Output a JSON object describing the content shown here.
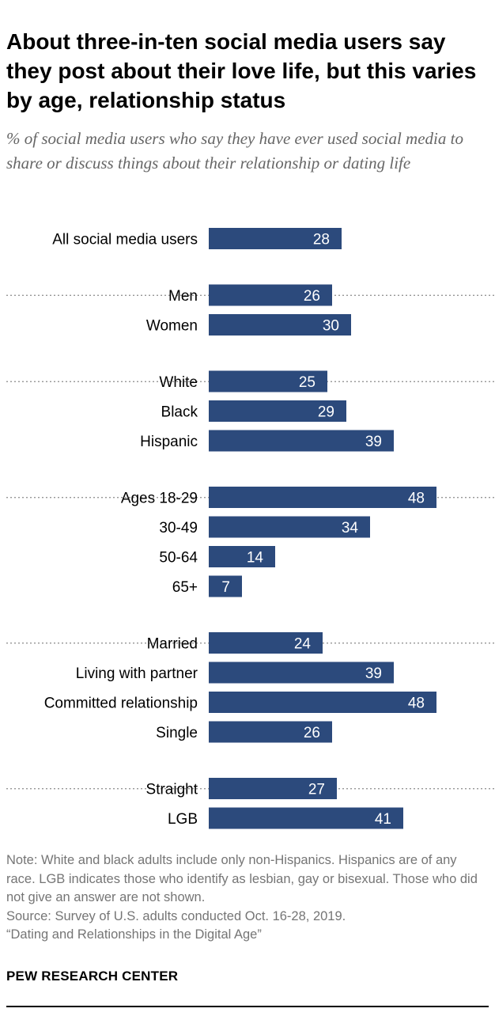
{
  "title": "About three-in-ten social media users say they post about their love life, but this varies by age, relationship status",
  "subtitle": "% of social media users who say they have ever used social media to share or discuss things about their relationship or dating life",
  "chart_data": {
    "type": "bar",
    "orientation": "horizontal",
    "title": "About three-in-ten social media users say they post about their love life, but this varies by age, relationship status",
    "subtitle": "% of social media users who say they have ever used social media to share or discuss things about their relationship or dating life",
    "xlim": [
      0,
      100
    ],
    "grid": false,
    "legend": "none",
    "bar_color": "#2c4a7c",
    "groups": [
      {
        "categories": [
          "All social media users"
        ],
        "values": [
          28
        ]
      },
      {
        "categories": [
          "Men",
          "Women"
        ],
        "values": [
          26,
          30
        ]
      },
      {
        "categories": [
          "White",
          "Black",
          "Hispanic"
        ],
        "values": [
          25,
          29,
          39
        ]
      },
      {
        "categories": [
          "Ages 18-29",
          "30-49",
          "50-64",
          "65+"
        ],
        "values": [
          48,
          34,
          14,
          7
        ]
      },
      {
        "categories": [
          "Married",
          "Living with partner",
          "Committed relationship",
          "Single"
        ],
        "values": [
          24,
          39,
          48,
          26
        ]
      },
      {
        "categories": [
          "Straight",
          "LGB"
        ],
        "values": [
          27,
          41
        ]
      }
    ]
  },
  "notes": {
    "note": "Note: White and black adults include only non-Hispanics. Hispanics are of any race. LGB indicates those who identify as lesbian, gay or bisexual. Those who did not give an answer are not shown.",
    "source": "Source: Survey of U.S. adults conducted Oct. 16-28, 2019.",
    "report": "“Dating and Relationships in the Digital Age”"
  },
  "brand": "PEW RESEARCH CENTER"
}
